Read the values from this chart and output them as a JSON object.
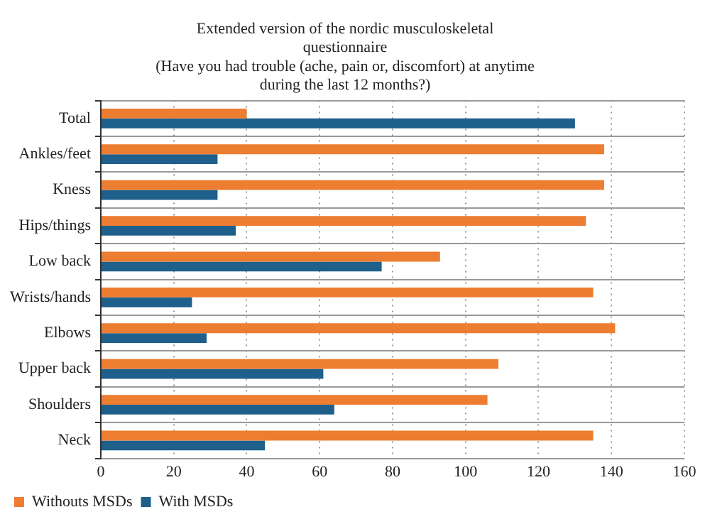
{
  "chart_data": {
    "type": "bar",
    "orientation": "horizontal",
    "title": [
      "Extended version of the nordic musculoskeletal",
      "questionnaire",
      "(Have you had trouble (ache, pain or, discomfort) at anytime",
      "during the last 12 months?)"
    ],
    "categories": [
      "Total",
      "Ankles/feet",
      "Kness",
      "Hips/things",
      "Low back",
      "Wrists/hands",
      "Elbows",
      "Upper back",
      "Shoulders",
      "Neck"
    ],
    "series": [
      {
        "name": "Withouts MSDs",
        "color": "#ed7d31",
        "values": [
          40,
          138,
          138,
          133,
          93,
          135,
          141,
          109,
          106,
          135
        ]
      },
      {
        "name": "With MSDs",
        "color": "#1f5f8b",
        "values": [
          130,
          32,
          32,
          37,
          77,
          25,
          29,
          61,
          64,
          45
        ]
      }
    ],
    "xlim": [
      0,
      160
    ],
    "xticks": [
      0,
      20,
      40,
      60,
      80,
      100,
      120,
      140,
      160
    ],
    "grid": true,
    "legend": "bottom left"
  }
}
